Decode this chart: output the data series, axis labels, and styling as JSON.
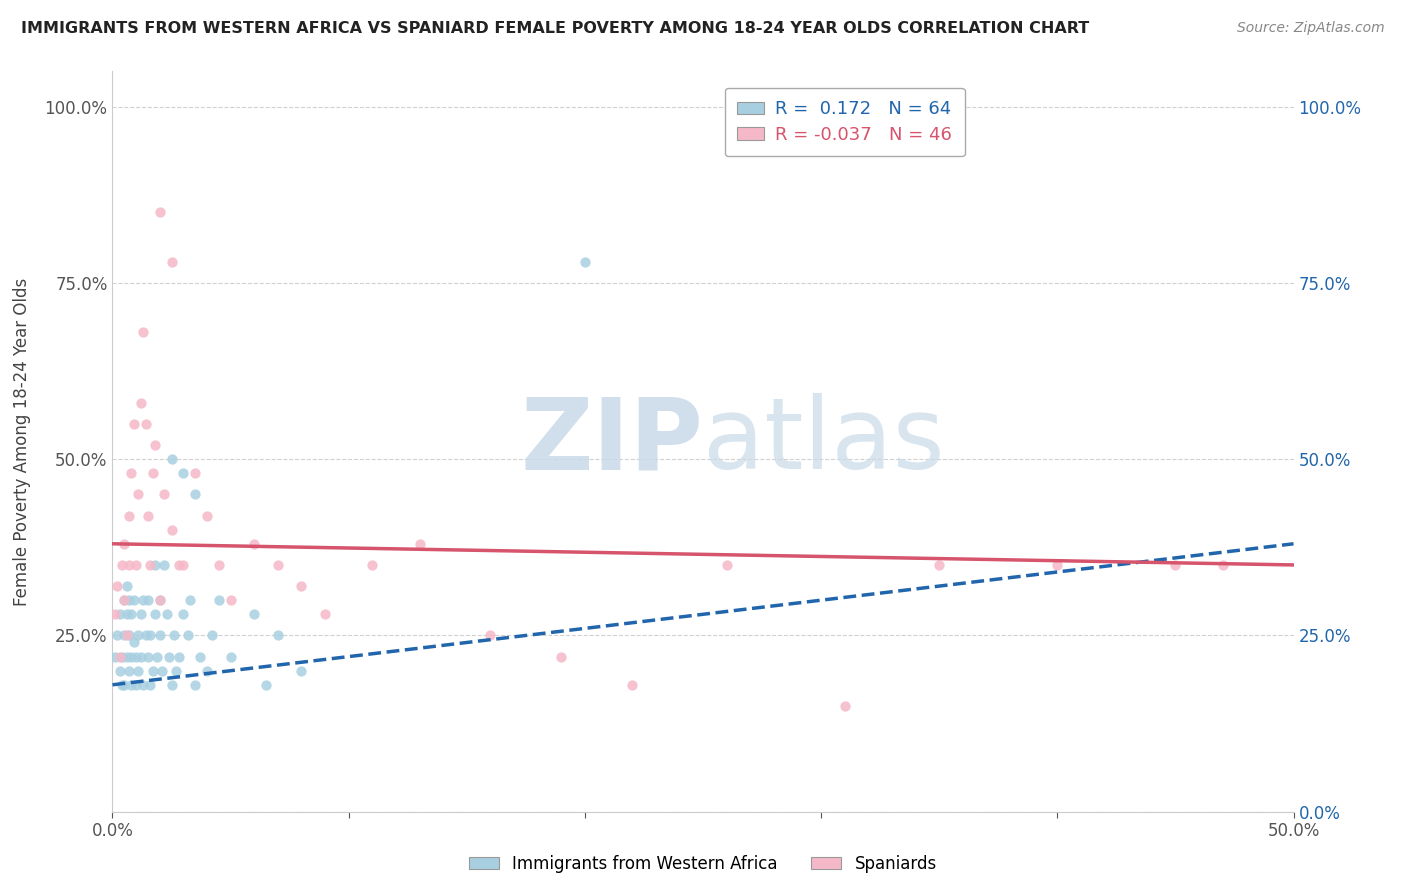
{
  "title": "IMMIGRANTS FROM WESTERN AFRICA VS SPANIARD FEMALE POVERTY AMONG 18-24 YEAR OLDS CORRELATION CHART",
  "source": "Source: ZipAtlas.com",
  "ylabel": "Female Poverty Among 18-24 Year Olds",
  "xlim": [
    0.0,
    0.5
  ],
  "ylim": [
    0.0,
    1.05
  ],
  "yticks": [
    0.0,
    0.25,
    0.5,
    0.75,
    1.0
  ],
  "ytick_labels_left": [
    "",
    "25.0%",
    "50.0%",
    "75.0%",
    "100.0%"
  ],
  "ytick_labels_right": [
    "0.0%",
    "25.0%",
    "50.0%",
    "75.0%",
    "100.0%"
  ],
  "xtick_positions": [
    0.0,
    0.1,
    0.2,
    0.3,
    0.4,
    0.5
  ],
  "xtick_labels": [
    "0.0%",
    "",
    "",
    "",
    "",
    "50.0%"
  ],
  "blue_color": "#a8cfe0",
  "pink_color": "#f5b8c8",
  "blue_line_color": "#2166ac",
  "pink_line_color": "#d6546c",
  "legend_R_blue": "0.172",
  "legend_N_blue": "64",
  "legend_R_pink": "-0.037",
  "legend_N_pink": "46",
  "blue_scatter_x": [
    0.001,
    0.002,
    0.003,
    0.003,
    0.004,
    0.004,
    0.005,
    0.005,
    0.005,
    0.006,
    0.006,
    0.006,
    0.007,
    0.007,
    0.007,
    0.008,
    0.008,
    0.008,
    0.009,
    0.009,
    0.01,
    0.01,
    0.011,
    0.011,
    0.012,
    0.012,
    0.013,
    0.013,
    0.014,
    0.015,
    0.015,
    0.016,
    0.016,
    0.017,
    0.018,
    0.018,
    0.019,
    0.02,
    0.02,
    0.021,
    0.022,
    0.023,
    0.024,
    0.025,
    0.026,
    0.027,
    0.028,
    0.03,
    0.032,
    0.033,
    0.035,
    0.037,
    0.04,
    0.042,
    0.045,
    0.05,
    0.06,
    0.065,
    0.07,
    0.08,
    0.03,
    0.035,
    0.025,
    0.2
  ],
  "blue_scatter_y": [
    0.22,
    0.25,
    0.2,
    0.28,
    0.18,
    0.22,
    0.25,
    0.3,
    0.18,
    0.22,
    0.28,
    0.32,
    0.2,
    0.25,
    0.3,
    0.18,
    0.22,
    0.28,
    0.24,
    0.3,
    0.22,
    0.18,
    0.25,
    0.2,
    0.28,
    0.22,
    0.3,
    0.18,
    0.25,
    0.22,
    0.3,
    0.18,
    0.25,
    0.2,
    0.28,
    0.35,
    0.22,
    0.3,
    0.25,
    0.2,
    0.35,
    0.28,
    0.22,
    0.18,
    0.25,
    0.2,
    0.22,
    0.28,
    0.25,
    0.3,
    0.18,
    0.22,
    0.2,
    0.25,
    0.3,
    0.22,
    0.28,
    0.18,
    0.25,
    0.2,
    0.48,
    0.45,
    0.5,
    0.78
  ],
  "pink_scatter_x": [
    0.001,
    0.002,
    0.003,
    0.004,
    0.005,
    0.005,
    0.006,
    0.007,
    0.007,
    0.008,
    0.009,
    0.01,
    0.011,
    0.012,
    0.013,
    0.014,
    0.015,
    0.016,
    0.017,
    0.018,
    0.02,
    0.022,
    0.025,
    0.028,
    0.03,
    0.035,
    0.04,
    0.045,
    0.05,
    0.06,
    0.07,
    0.08,
    0.09,
    0.11,
    0.13,
    0.16,
    0.19,
    0.22,
    0.26,
    0.31,
    0.35,
    0.4,
    0.45,
    0.47,
    0.02,
    0.025
  ],
  "pink_scatter_y": [
    0.28,
    0.32,
    0.22,
    0.35,
    0.3,
    0.38,
    0.25,
    0.42,
    0.35,
    0.48,
    0.55,
    0.35,
    0.45,
    0.58,
    0.68,
    0.55,
    0.42,
    0.35,
    0.48,
    0.52,
    0.3,
    0.45,
    0.4,
    0.35,
    0.35,
    0.48,
    0.42,
    0.35,
    0.3,
    0.38,
    0.35,
    0.32,
    0.28,
    0.35,
    0.38,
    0.25,
    0.22,
    0.18,
    0.35,
    0.15,
    0.35,
    0.35,
    0.35,
    0.35,
    0.85,
    0.78
  ],
  "blue_regr": [
    0.18,
    0.38
  ],
  "pink_regr": [
    0.38,
    0.35
  ]
}
